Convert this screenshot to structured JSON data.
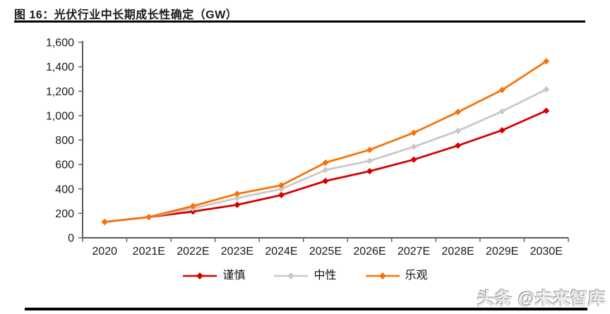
{
  "figure": {
    "title": "图 16：光伏行业中长期成长性确定（GW）"
  },
  "watermark": "头条 @未来智库",
  "chart_data": {
    "type": "line",
    "title": "光伏行业中长期成长性确定（GW）",
    "categories": [
      "2020",
      "2021E",
      "2022E",
      "2023E",
      "2024E",
      "2025E",
      "2026E",
      "2027E",
      "2028E",
      "2029E",
      "2030E"
    ],
    "series": [
      {
        "key": "cautious",
        "name": "谨慎",
        "color": "#D60000",
        "values": [
          130,
          170,
          215,
          270,
          350,
          465,
          545,
          640,
          755,
          880,
          1040
        ]
      },
      {
        "key": "neutral",
        "name": "中性",
        "color": "#C9C9C9",
        "values": [
          130,
          170,
          240,
          325,
          400,
          555,
          630,
          745,
          875,
          1035,
          1215
        ]
      },
      {
        "key": "optimistic",
        "name": "乐观",
        "color": "#F87307",
        "values": [
          130,
          170,
          260,
          360,
          430,
          615,
          720,
          860,
          1030,
          1210,
          1445
        ]
      }
    ],
    "xlabel": "",
    "ylabel": "",
    "ylim": [
      0,
      1600
    ],
    "y_step": 200,
    "y_tick_labels": [
      "0",
      "200",
      "400",
      "600",
      "800",
      "1,000",
      "1,200",
      "1,400",
      "1,600"
    ],
    "marker": "diamond",
    "grid": false,
    "legend_position": "bottom",
    "axis_color": "#595959",
    "tick_label_color": "#1a1a1a"
  }
}
